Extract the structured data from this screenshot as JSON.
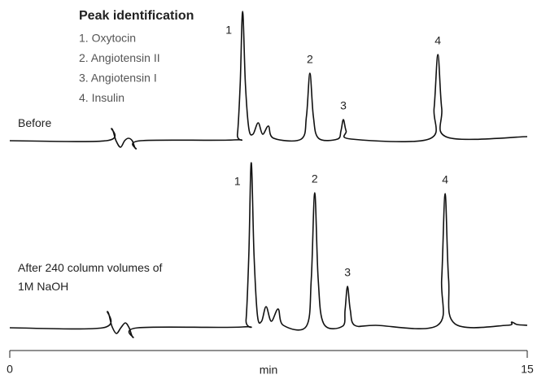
{
  "chart_data": {
    "type": "line",
    "legend_title": "Peak identification",
    "legend_items": [
      "1.  Oxytocin",
      "2.  Angiotensin II",
      "3.  Angiotensin I",
      "4.  Insulin"
    ],
    "xlabel": "min",
    "xlim": [
      0,
      15
    ],
    "xticks": [
      0,
      15
    ],
    "color": "#111111",
    "series": [
      {
        "name": "Before",
        "x": [
          0,
          2.8,
          2.95,
          3.08,
          3.21,
          3.33,
          3.44,
          3.55,
          3.66,
          3.8,
          6.5,
          6.6,
          6.68,
          6.75,
          6.83,
          6.93,
          7.05,
          7.2,
          7.33,
          7.5,
          7.65,
          8.45,
          8.6,
          8.7,
          8.8,
          8.95,
          9.5,
          9.6,
          9.67,
          9.75,
          9.9,
          12.15,
          12.3,
          12.41,
          12.52,
          12.7,
          15
        ],
        "values": [
          0,
          0,
          15,
          0,
          -8,
          0,
          3,
          0,
          -10,
          0,
          1,
          8,
          70,
          159,
          70,
          15,
          8,
          22,
          8,
          18,
          3,
          2,
          30,
          83,
          30,
          3,
          2,
          12,
          26,
          12,
          2,
          2,
          40,
          106,
          40,
          4,
          5
        ],
        "peaks": [
          {
            "label": "1",
            "x": 6.75
          },
          {
            "label": "2",
            "x": 8.7
          },
          {
            "label": "3",
            "x": 9.67
          },
          {
            "label": "4",
            "x": 12.41
          }
        ]
      },
      {
        "name": "After 240 column volumes of 1M NaOH",
        "x": [
          0,
          2.7,
          2.83,
          2.96,
          3.09,
          3.22,
          3.35,
          3.46,
          3.58,
          3.72,
          6.75,
          6.85,
          6.93,
          7.0,
          7.08,
          7.18,
          7.3,
          7.43,
          7.58,
          7.78,
          7.93,
          8.6,
          8.74,
          8.84,
          8.94,
          9.1,
          9.65,
          9.72,
          9.79,
          9.87,
          10.0,
          10.6,
          12.4,
          12.52,
          12.62,
          12.72,
          12.9,
          14.4,
          14.55,
          14.7,
          15
        ],
        "values": [
          0,
          0,
          20,
          2,
          -7,
          0,
          6,
          0,
          -12,
          0,
          1,
          10,
          90,
          203,
          90,
          15,
          8,
          26,
          8,
          23,
          3,
          2,
          60,
          166,
          60,
          5,
          2,
          22,
          51,
          22,
          3,
          3,
          3,
          60,
          165,
          60,
          5,
          3,
          7,
          4,
          3
        ],
        "peaks": [
          {
            "label": "1",
            "x": 7.0
          },
          {
            "label": "2",
            "x": 8.84
          },
          {
            "label": "3",
            "x": 9.79
          },
          {
            "label": "4",
            "x": 12.62
          }
        ]
      }
    ]
  }
}
